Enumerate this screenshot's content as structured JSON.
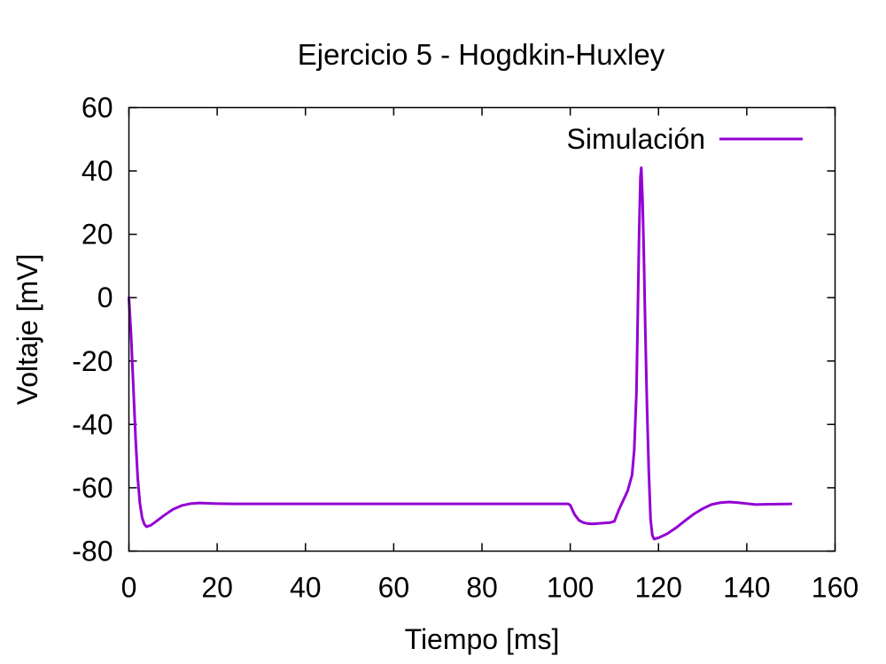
{
  "chart_data": {
    "type": "line",
    "title": "Ejercicio 5 - Hogdkin-Huxley",
    "xlabel": "Tiempo [ms]",
    "ylabel": "Voltaje [mV]",
    "xlim": [
      0,
      160
    ],
    "ylim": [
      -80,
      60
    ],
    "x_ticks": [
      0,
      20,
      40,
      60,
      80,
      100,
      120,
      140,
      160
    ],
    "y_ticks": [
      -80,
      -60,
      -40,
      -20,
      0,
      20,
      40,
      60
    ],
    "grid": false,
    "legend_position": "top-right",
    "series": [
      {
        "name": "Simulación",
        "color": "#9400d3",
        "x": [
          0,
          0.5,
          1,
          1.5,
          2,
          2.5,
          3,
          3.5,
          4,
          5,
          6,
          8,
          10,
          12,
          14,
          16,
          18,
          20,
          24,
          30,
          40,
          60,
          80,
          99.5,
          100,
          101,
          102,
          103,
          104,
          105,
          106,
          107,
          108,
          109,
          110,
          111,
          112,
          113,
          114,
          114.5,
          115,
          115.3,
          115.6,
          115.9,
          116.1,
          116.4,
          116.7,
          117,
          117.4,
          117.8,
          118.2,
          118.6,
          119,
          120,
          122,
          124,
          126,
          128,
          130,
          132,
          134,
          136,
          138,
          140,
          142,
          145,
          150
        ],
        "y": [
          0,
          -12,
          -28,
          -44,
          -57,
          -65,
          -69.5,
          -71.5,
          -72.3,
          -71.8,
          -70.8,
          -68.7,
          -66.8,
          -65.6,
          -65,
          -64.8,
          -64.9,
          -65,
          -65.1,
          -65.1,
          -65.1,
          -65.1,
          -65.1,
          -65.1,
          -65.5,
          -68.5,
          -70.3,
          -71,
          -71.3,
          -71.4,
          -71.3,
          -71.2,
          -71.1,
          -71,
          -70.6,
          -67,
          -64,
          -61,
          -56,
          -48,
          -30,
          -5,
          20,
          38,
          41,
          30,
          12,
          -10,
          -35,
          -55,
          -70,
          -75,
          -76.2,
          -75.8,
          -74.5,
          -72.6,
          -70.4,
          -68.3,
          -66.6,
          -65.3,
          -64.7,
          -64.5,
          -64.7,
          -65,
          -65.3,
          -65.2,
          -65.1
        ]
      }
    ]
  }
}
